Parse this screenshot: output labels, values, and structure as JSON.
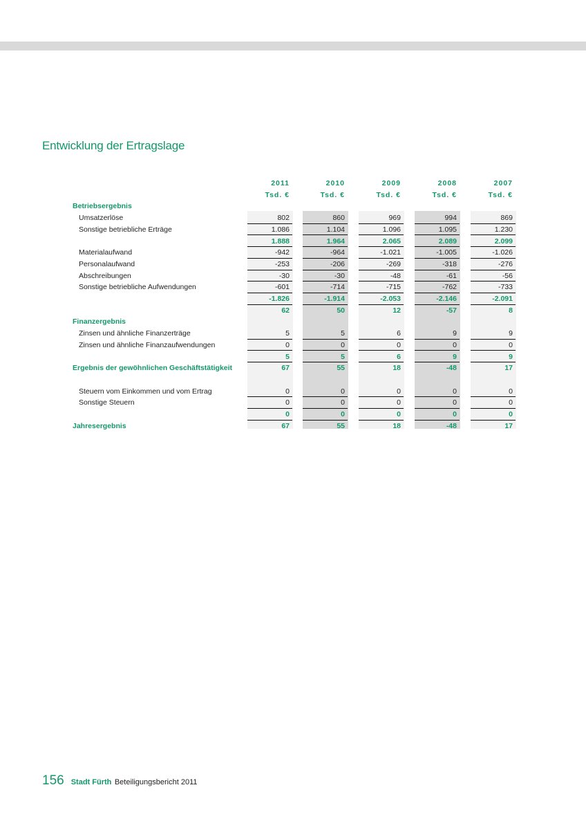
{
  "title": "Entwicklung der Ertragslage",
  "colors": {
    "accent": "#14976a",
    "col_light": "#f2f2f2",
    "col_dark": "#d9d9d9"
  },
  "years": [
    "2011",
    "2010",
    "2009",
    "2008",
    "2007"
  ],
  "unit": "Tsd. €",
  "rows": [
    {
      "type": "section",
      "label": "Betriebsergebnis",
      "values": []
    },
    {
      "type": "item",
      "label": "Umsatzerlöse",
      "values": [
        "802",
        "860",
        "969",
        "994",
        "869"
      ]
    },
    {
      "type": "item",
      "label": "Sonstige betriebliche Erträge",
      "values": [
        "1.086",
        "1.104",
        "1.096",
        "1.095",
        "1.230"
      ]
    },
    {
      "type": "subtotal",
      "label": "",
      "values": [
        "1.888",
        "1.964",
        "2.065",
        "2.089",
        "2.099"
      ]
    },
    {
      "type": "item",
      "label": "Materialaufwand",
      "values": [
        "-942",
        "-964",
        "-1.021",
        "-1.005",
        "-1.026"
      ]
    },
    {
      "type": "item",
      "label": "Personalaufwand",
      "values": [
        "-253",
        "-206",
        "-269",
        "-318",
        "-276"
      ]
    },
    {
      "type": "item",
      "label": "Abschreibungen",
      "values": [
        "-30",
        "-30",
        "-48",
        "-61",
        "-56"
      ]
    },
    {
      "type": "item",
      "label": "Sonstige betriebliche Aufwendungen",
      "values": [
        "-601",
        "-714",
        "-715",
        "-762",
        "-733"
      ]
    },
    {
      "type": "subtotal",
      "label": "",
      "values": [
        "-1.826",
        "-1.914",
        "-2.053",
        "-2.146",
        "-2.091"
      ]
    },
    {
      "type": "result",
      "label": "",
      "values": [
        "62",
        "50",
        "12",
        "-57",
        "8"
      ]
    },
    {
      "type": "section",
      "label": "Finanzergebnis",
      "values": []
    },
    {
      "type": "item",
      "label": "Zinsen und ähnliche Finanzerträge",
      "values": [
        "5",
        "5",
        "6",
        "9",
        "9"
      ]
    },
    {
      "type": "item",
      "label": "Zinsen und ähnliche Finanzaufwendungen",
      "values": [
        "0",
        "0",
        "0",
        "0",
        "0"
      ]
    },
    {
      "type": "subtotal",
      "label": "",
      "values": [
        "5",
        "5",
        "6",
        "9",
        "9"
      ]
    },
    {
      "type": "result",
      "label": "Ergebnis der gewöhnlichen Geschäftstätigkeit",
      "values": [
        "67",
        "55",
        "18",
        "-48",
        "17"
      ]
    },
    {
      "type": "blank",
      "label": "",
      "values": []
    },
    {
      "type": "item",
      "label": "Steuern vom Einkommen und vom Ertrag",
      "values": [
        "0",
        "0",
        "0",
        "0",
        "0"
      ]
    },
    {
      "type": "item",
      "label": "Sonstige Steuern",
      "values": [
        "0",
        "0",
        "0",
        "0",
        "0"
      ]
    },
    {
      "type": "subtotal",
      "label": "",
      "values": [
        "0",
        "0",
        "0",
        "0",
        "0"
      ]
    },
    {
      "type": "result",
      "label": "Jahresergebnis",
      "values": [
        "67",
        "55",
        "18",
        "-48",
        "17"
      ]
    }
  ],
  "footer": {
    "page_number": "156",
    "brand": "Stadt Fürth",
    "subtitle": "Beteiligungsbericht 2011"
  }
}
